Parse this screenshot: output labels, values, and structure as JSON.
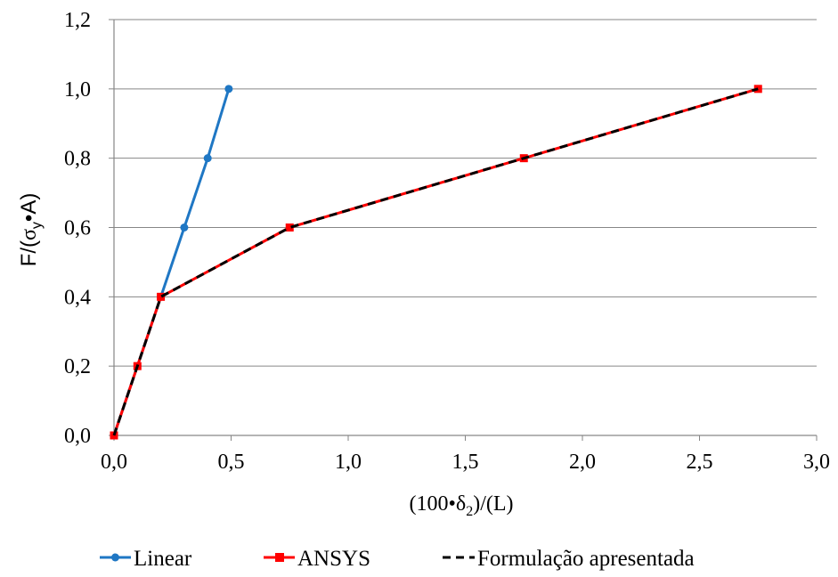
{
  "chart_data": {
    "type": "line",
    "xlabel_parts": [
      "(100",
      "•",
      "δ",
      "2",
      ")/(L)"
    ],
    "ylabel_parts": [
      "F/(",
      "σ",
      "y",
      "•",
      "A)"
    ],
    "xlim": [
      0,
      3.0
    ],
    "ylim": [
      0,
      1.2
    ],
    "x_ticks": [
      0,
      0.5,
      1.0,
      1.5,
      2.0,
      2.5,
      3.0
    ],
    "x_tick_labels": [
      "0,0",
      "0,5",
      "1,0",
      "1,5",
      "2,0",
      "2,5",
      "3,0"
    ],
    "y_ticks": [
      0,
      0.2,
      0.4,
      0.6,
      0.8,
      1.0,
      1.2
    ],
    "y_tick_labels": [
      "0,0",
      "0,2",
      "0,4",
      "0,6",
      "0,8",
      "1,0",
      "1,2"
    ],
    "grid": "horizontal",
    "legend_position": "bottom",
    "series": [
      {
        "name": "Linear",
        "color": "#1f77c4",
        "marker": "circle",
        "dash": "solid",
        "points": [
          [
            0,
            0
          ],
          [
            0.1,
            0.2
          ],
          [
            0.2,
            0.4
          ],
          [
            0.3,
            0.6
          ],
          [
            0.4,
            0.8
          ],
          [
            0.49,
            1.0
          ]
        ]
      },
      {
        "name": "ANSYS",
        "color": "#ff0000",
        "marker": "square",
        "dash": "solid",
        "points": [
          [
            0,
            0
          ],
          [
            0.1,
            0.2
          ],
          [
            0.2,
            0.4
          ],
          [
            0.75,
            0.6
          ],
          [
            1.75,
            0.8
          ],
          [
            2.75,
            1.0
          ]
        ]
      },
      {
        "name": "Formulação apresentada",
        "color": "#000000",
        "marker": "none",
        "dash": "dashed",
        "points": [
          [
            0,
            0
          ],
          [
            0.1,
            0.2
          ],
          [
            0.2,
            0.4
          ],
          [
            0.75,
            0.6
          ],
          [
            1.75,
            0.8
          ],
          [
            2.75,
            1.0
          ]
        ]
      }
    ]
  }
}
